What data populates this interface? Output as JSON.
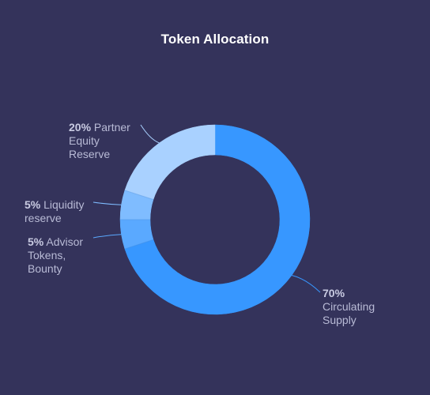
{
  "chart_data": {
    "type": "pie",
    "title": "Token Allocation",
    "categories": [
      "Circulating Supply",
      "Advisor Tokens, Bounty",
      "Liquidity reserve",
      "Partner Equity Reserve"
    ],
    "values": [
      70,
      5,
      5,
      20
    ],
    "value_labels": [
      "70%",
      "5%",
      "5%",
      "20%"
    ],
    "colors": [
      "#3797ff",
      "#5aa9ff",
      "#7fbcff",
      "#a9d1ff"
    ],
    "donut": true,
    "legend": "none"
  }
}
